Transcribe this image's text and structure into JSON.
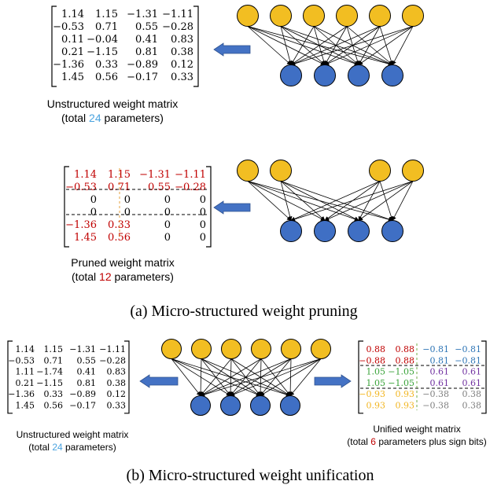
{
  "colors": {
    "input_node": "#F2BE22",
    "output_node": "#3F6FC4",
    "node_stroke": "#000000",
    "arrow_fill": "#4472C4",
    "kept": "#C00000",
    "zero": "#000000",
    "total_blue": "#4AA3DF",
    "total_red": "#C00000",
    "g1": "#C00000",
    "g2": "#2E75B6",
    "g3": "#3AA33A",
    "g4": "#7030A0",
    "g5": "#F2B622",
    "g6": "#808080",
    "dash_black": "#000000",
    "dash_orange": "#E6A03C",
    "dash_green": "#70AD47"
  },
  "panel_a": {
    "unstructured": {
      "rows": [
        [
          "1.14",
          "1.15",
          "−1.31",
          "−1.11"
        ],
        [
          "−0.53",
          "0.71",
          "0.55",
          "−0.28"
        ],
        [
          "0.11",
          "−0.04",
          "0.41",
          "0.83"
        ],
        [
          "0.21",
          "−1.15",
          "0.81",
          "0.38"
        ],
        [
          "−1.36",
          "0.33",
          "−0.89",
          "0.12"
        ],
        [
          "1.45",
          "0.56",
          "−0.17",
          "0.33"
        ]
      ],
      "caption_line1": "Unstructured weight matrix",
      "caption_pre": "(total ",
      "caption_num": "24",
      "caption_post": " parameters)"
    },
    "pruned": {
      "rows": [
        [
          "1.14",
          "1.15",
          "−1.31",
          "−1.11"
        ],
        [
          "−0.53",
          "0.71",
          "0.55",
          "−0.28"
        ],
        [
          "0",
          "0",
          "0",
          "0"
        ],
        [
          "0",
          "0",
          "0",
          "0"
        ],
        [
          "−1.36",
          "0.33",
          "0",
          "0"
        ],
        [
          "1.45",
          "0.56",
          "0",
          "0"
        ]
      ],
      "caption_line1": "Pruned weight matrix",
      "caption_pre": "(total ",
      "caption_num": "12",
      "caption_post": " parameters)"
    },
    "label": "(a) Micro-structured weight pruning"
  },
  "panel_b": {
    "unstructured": {
      "rows": [
        [
          "1.14",
          "1.15",
          "−1.31",
          "−1.11"
        ],
        [
          "−0.53",
          "0.71",
          "0.55",
          "−0.28"
        ],
        [
          "1.11",
          "−1.74",
          "0.41",
          "0.83"
        ],
        [
          "0.21",
          "−1.15",
          "0.81",
          "0.38"
        ],
        [
          "−1.36",
          "0.33",
          "−0.89",
          "0.12"
        ],
        [
          "1.45",
          "0.56",
          "−0.17",
          "0.33"
        ]
      ],
      "caption_line1": "Unstructured weight matrix",
      "caption_pre": "(total ",
      "caption_num": "24",
      "caption_post": " parameters)"
    },
    "unified": {
      "rows": [
        [
          "0.88",
          "0.88",
          "−0.81",
          "−0.81"
        ],
        [
          "−0.88",
          "0.88",
          "0.81",
          "−0.81"
        ],
        [
          "1.05",
          "−1.05",
          "0.61",
          "0.61"
        ],
        [
          "1.05",
          "−1.05",
          "0.61",
          "0.61"
        ],
        [
          "−0.93",
          "0.93",
          "−0.38",
          "0.38"
        ],
        [
          "0.93",
          "0.93",
          "−0.38",
          "0.38"
        ]
      ],
      "caption_line1": "Unified weight matrix",
      "caption_pre": "(total ",
      "caption_num": "6",
      "caption_post": " parameters plus sign bits)"
    },
    "label": "(b) Micro-structured weight unification"
  }
}
